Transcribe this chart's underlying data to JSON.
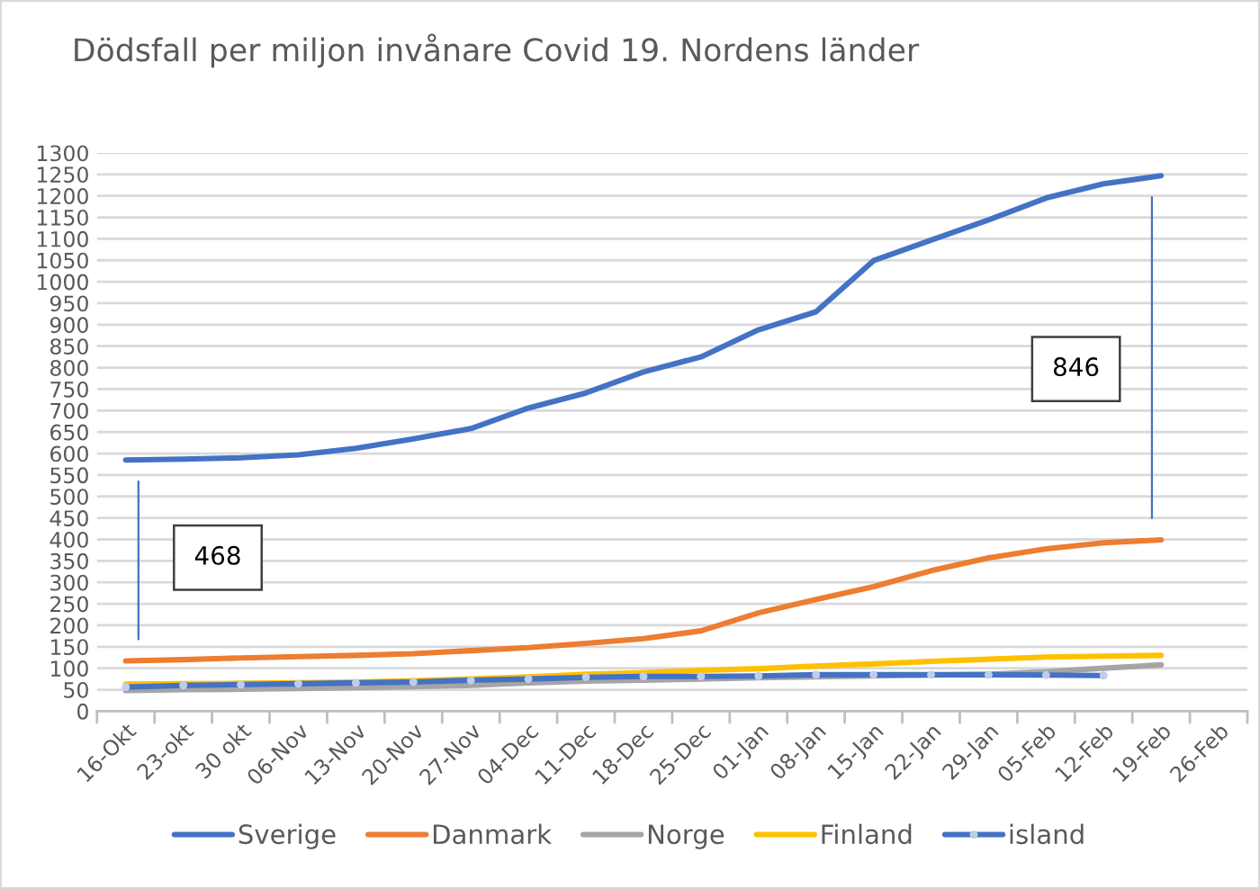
{
  "chart_data": {
    "type": "line",
    "title": "Dödsfall per miljon invånare Covid 19. Nordens länder",
    "categories": [
      "16-Okt",
      "23-okt",
      "30 okt",
      "06-Nov",
      "13-Nov",
      "20-Nov",
      "27-Nov",
      "04-Dec",
      "11-Dec",
      "18-Dec",
      "25-Dec",
      "01-Jan",
      "08-Jan",
      "15-Jan",
      "22-Jan",
      "29-Jan",
      "05-Feb",
      "12-Feb",
      "19-Feb",
      "26-Feb"
    ],
    "series": [
      {
        "name": "Sverige",
        "color": "#4472c4",
        "values": [
          585,
          587,
          590,
          597,
          612,
          634,
          658,
          706,
          741,
          790,
          825,
          888,
          930,
          1049,
          1097,
          1144,
          1195,
          1228,
          1247,
          null
        ]
      },
      {
        "name": "Danmark",
        "color": "#ed7d31",
        "values": [
          117,
          120,
          124,
          127,
          130,
          134,
          141,
          148,
          158,
          169,
          187,
          229,
          260,
          290,
          327,
          357,
          378,
          392,
          399,
          null
        ]
      },
      {
        "name": "Norge",
        "color": "#a5a5a5",
        "values": [
          48,
          50,
          51,
          53,
          55,
          57,
          60,
          66,
          70,
          72,
          75,
          78,
          80,
          82,
          84,
          86,
          92,
          100,
          108,
          null
        ]
      },
      {
        "name": "Finland",
        "color": "#ffc000",
        "values": [
          63,
          64,
          65,
          66,
          68,
          71,
          75,
          80,
          86,
          90,
          95,
          99,
          105,
          110,
          116,
          121,
          126,
          128,
          130,
          null
        ]
      },
      {
        "name": "island",
        "color": "#4472c4",
        "marker": "circle",
        "values": [
          56,
          60,
          62,
          64,
          66,
          68,
          72,
          75,
          79,
          81,
          81,
          82,
          85,
          85,
          85,
          85,
          84,
          83,
          null,
          null
        ]
      }
    ],
    "ylim": [
      0,
      1300
    ],
    "yticks": [
      0,
      50,
      100,
      150,
      200,
      250,
      300,
      350,
      400,
      450,
      500,
      550,
      600,
      650,
      700,
      750,
      800,
      850,
      900,
      950,
      1000,
      1050,
      1100,
      1150,
      1200,
      1250,
      1300
    ],
    "grid": "y",
    "legend": "bottom",
    "annotations": [
      "468",
      "846"
    ]
  }
}
